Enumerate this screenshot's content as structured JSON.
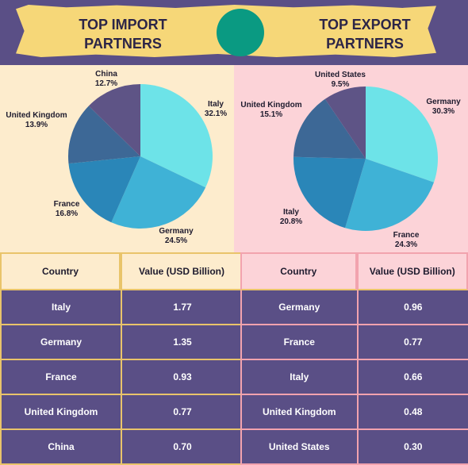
{
  "header": {
    "import_title": "TOP IMPORT PARTNERS",
    "export_title": "TOP EXPORT PARTNERS"
  },
  "colors": {
    "background": "#5a4f86",
    "banner": "#f6d778",
    "accent_circle": "#0a9a82",
    "import_panel": "#fdeccd",
    "export_panel": "#fcd3d8"
  },
  "chart_data": [
    {
      "type": "pie",
      "title": "TOP IMPORT PARTNERS",
      "categories": [
        "Italy",
        "Germany",
        "France",
        "United Kingdom",
        "China"
      ],
      "values": [
        32.1,
        24.5,
        16.8,
        13.9,
        12.7
      ],
      "labels": [
        "32.1%",
        "24.5%",
        "16.8%",
        "13.9%",
        "12.7%"
      ],
      "colors": [
        "#6de3e8",
        "#3fb2d6",
        "#2a86b8",
        "#3d6896",
        "#5e5486"
      ]
    },
    {
      "type": "pie",
      "title": "TOP EXPORT PARTNERS",
      "categories": [
        "Germany",
        "France",
        "Italy",
        "United Kingdom",
        "United States"
      ],
      "values": [
        30.3,
        24.3,
        20.8,
        15.1,
        9.5
      ],
      "labels": [
        "30.3%",
        "24.3%",
        "20.8%",
        "15.1%",
        "9.5%"
      ],
      "colors": [
        "#6de3e8",
        "#3fb2d6",
        "#2a86b8",
        "#3d6896",
        "#5e5486"
      ]
    }
  ],
  "import_table": {
    "headers": [
      "Country",
      "Value (USD Billion)"
    ],
    "rows": [
      [
        "Italy",
        "1.77"
      ],
      [
        "Germany",
        "1.35"
      ],
      [
        "France",
        "0.93"
      ],
      [
        "United Kingdom",
        "0.77"
      ],
      [
        "China",
        "0.70"
      ]
    ]
  },
  "export_table": {
    "headers": [
      "Country",
      "Value (USD Billion)"
    ],
    "rows": [
      [
        "Germany",
        "0.96"
      ],
      [
        "France",
        "0.77"
      ],
      [
        "Italy",
        "0.66"
      ],
      [
        "United Kingdom",
        "0.48"
      ],
      [
        "United States",
        "0.30"
      ]
    ]
  }
}
